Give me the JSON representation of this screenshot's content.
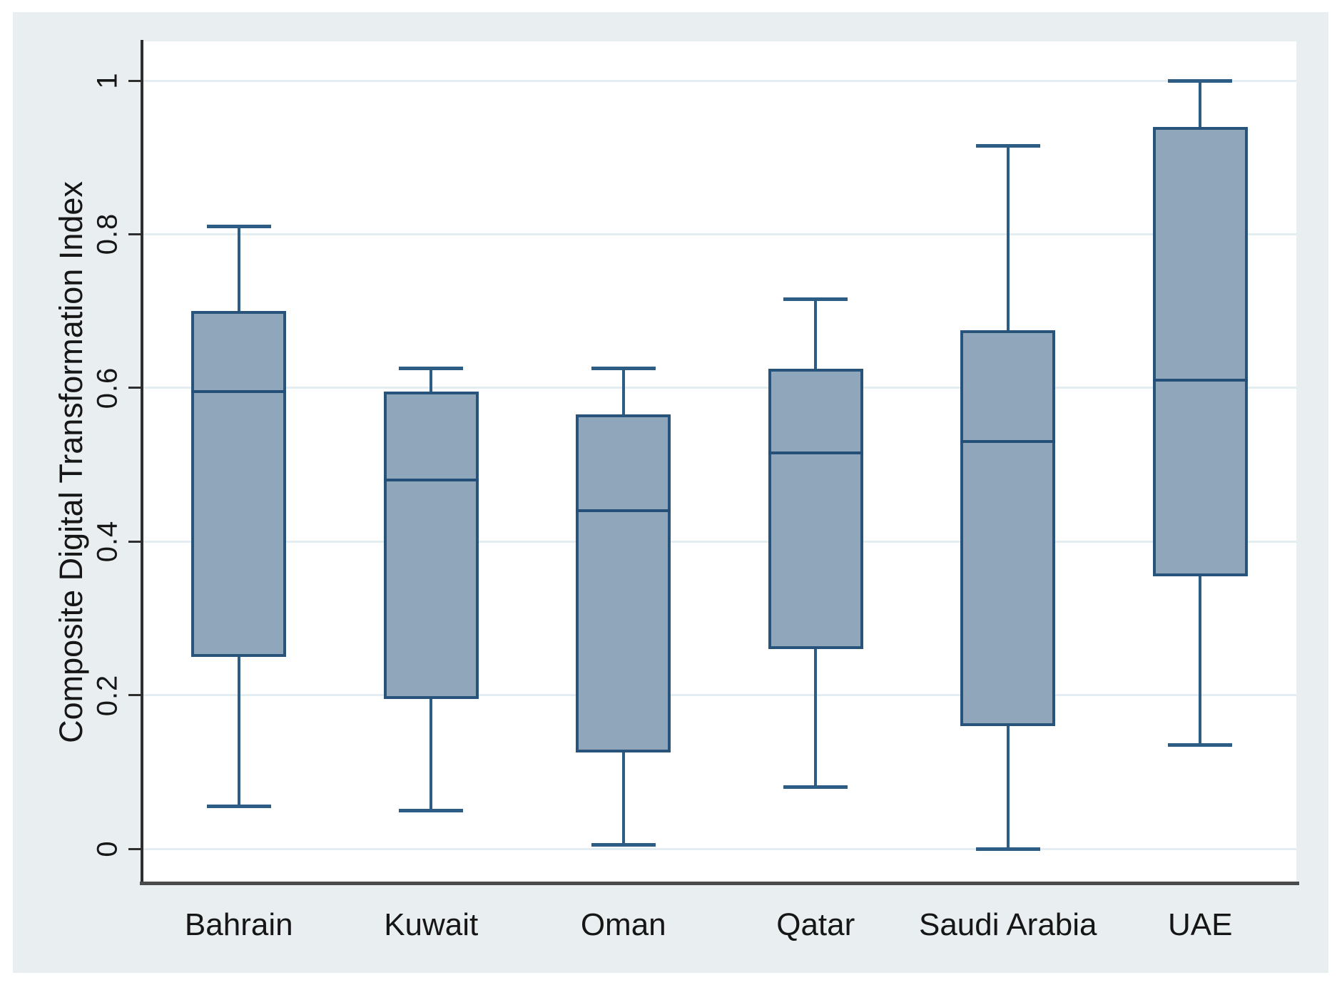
{
  "figure": {
    "ylabel": "Composite Digital Transformation Index",
    "colors": {
      "background": "#e9eef1",
      "plot_background": "#ffffff",
      "gridline": "#e4edf1",
      "axis_left": "#2e2e2e",
      "axis_bottom": "#4a4a4a",
      "box_fill": "#8fa6bb",
      "box_border": "#28537b",
      "whisker": "#2d5c85",
      "median": "#234f78",
      "text": "#161616"
    }
  },
  "chart_data": {
    "type": "box",
    "title": "",
    "xlabel": "",
    "ylabel": "Composite Digital Transformation Index",
    "categories": [
      "Bahrain",
      "Kuwait",
      "Oman",
      "Qatar",
      "Saudi Arabia",
      "UAE"
    ],
    "boxes": [
      {
        "category": "Bahrain",
        "whisker_low": 0.055,
        "q1": 0.25,
        "median": 0.595,
        "q3": 0.7,
        "whisker_high": 0.81
      },
      {
        "category": "Kuwait",
        "whisker_low": 0.05,
        "q1": 0.195,
        "median": 0.48,
        "q3": 0.595,
        "whisker_high": 0.625
      },
      {
        "category": "Oman",
        "whisker_low": 0.005,
        "q1": 0.125,
        "median": 0.44,
        "q3": 0.565,
        "whisker_high": 0.625
      },
      {
        "category": "Qatar",
        "whisker_low": 0.08,
        "q1": 0.26,
        "median": 0.515,
        "q3": 0.625,
        "whisker_high": 0.715
      },
      {
        "category": "Saudi Arabia",
        "whisker_low": 0.0,
        "q1": 0.16,
        "median": 0.53,
        "q3": 0.675,
        "whisker_high": 0.915
      },
      {
        "category": "UAE",
        "whisker_low": 0.135,
        "q1": 0.355,
        "median": 0.61,
        "q3": 0.94,
        "whisker_high": 1.0
      }
    ],
    "ylim": [
      0,
      1
    ],
    "yticks": [
      0,
      0.2,
      0.4,
      0.6,
      0.8,
      1
    ],
    "ytick_labels": [
      "0",
      "0.2",
      "0.4",
      "0.6",
      "0.8",
      "1"
    ],
    "grid": true,
    "legend": "none"
  }
}
